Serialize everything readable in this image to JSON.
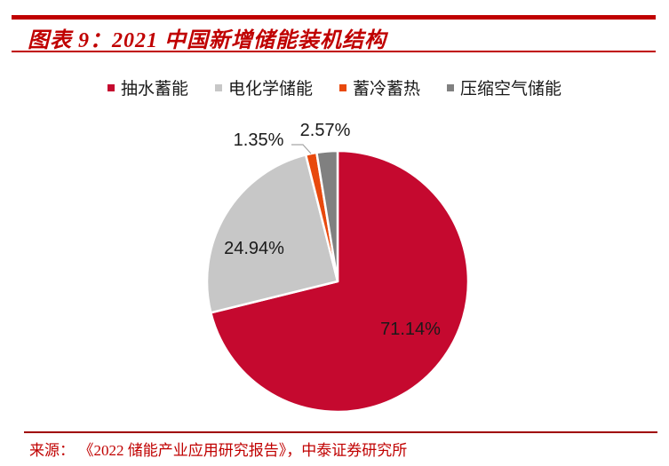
{
  "header": {
    "title": "图表 9：2021 中国新增储能装机结构"
  },
  "chart_data": {
    "type": "pie",
    "title": "2021 中国新增储能装机结构",
    "categories": [
      "抽水蓄能",
      "电化学储能",
      "蓄冷蓄热",
      "压缩空气储能"
    ],
    "values": [
      71.14,
      24.94,
      1.35,
      2.57
    ],
    "data_labels": [
      "71.14%",
      "24.94%",
      "1.35%",
      "2.57%"
    ],
    "unit": "%",
    "colors": [
      "#C5092F",
      "#C7C7C7",
      "#E8490D",
      "#808080"
    ],
    "legend_position": "top",
    "start_angle_deg": 0,
    "direction": "clockwise"
  },
  "footer": {
    "source_label": "来源：",
    "source_text": "《2022 储能产业应用研究报告》，中泰证券研究所"
  },
  "colors": {
    "accent_red": "#C00000",
    "footer_rule_red": "#A00000",
    "label_text": "#1A1A1A",
    "leader_line_gray": "#A6A6A6",
    "slice_border_white": "#FFFFFF"
  }
}
